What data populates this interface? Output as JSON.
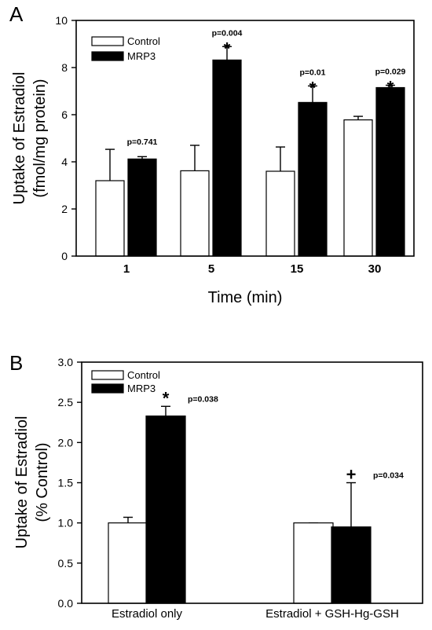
{
  "chart_data": [
    {
      "type": "bar",
      "panel_label": "A",
      "categories": [
        "1",
        "5",
        "15",
        "30"
      ],
      "xlabel": "Time (min)",
      "ylabel_line1": "Uptake of Estradiol",
      "ylabel_line2": "(fmol/mg protein)",
      "ylim": [
        0,
        10
      ],
      "yticks": [
        "0",
        "2",
        "4",
        "6",
        "8",
        "10"
      ],
      "ytick_values": [
        0,
        2,
        4,
        6,
        8,
        10
      ],
      "legend_placement": "top-left",
      "series": [
        {
          "name": "Control",
          "values": [
            3.2,
            3.62,
            3.6,
            5.78
          ],
          "errors": [
            1.33,
            1.08,
            1.03,
            0.15
          ],
          "color": "#ffffff"
        },
        {
          "name": "MRP3",
          "values": [
            4.12,
            8.32,
            6.52,
            7.15
          ],
          "errors": [
            0.1,
            0.57,
            0.7,
            0.1
          ],
          "color": "#000000"
        }
      ],
      "annotations": [
        {
          "category_index": 0,
          "pvalue": "p=0.741",
          "marker": ""
        },
        {
          "category_index": 1,
          "pvalue": "p=0.004",
          "marker": "*"
        },
        {
          "category_index": 2,
          "pvalue": "p=0.01",
          "marker": "*"
        },
        {
          "category_index": 3,
          "pvalue": "p=0.029",
          "marker": "*"
        }
      ]
    },
    {
      "type": "bar",
      "panel_label": "B",
      "categories": [
        "Estradiol only",
        "Estradiol + GSH-Hg-GSH"
      ],
      "xlabel": "",
      "ylabel_line1": "Uptake of Estradiol",
      "ylabel_line2": "(% Control)",
      "ylim": [
        0,
        3
      ],
      "yticks": [
        "0.0",
        "0.5",
        "1.0",
        "1.5",
        "2.0",
        "2.5",
        "3.0"
      ],
      "ytick_values": [
        0,
        0.5,
        1.0,
        1.5,
        2.0,
        2.5,
        3.0
      ],
      "legend_placement": "top-left",
      "series": [
        {
          "name": "Control",
          "values": [
            1.0,
            1.0
          ],
          "errors": [
            0.07,
            0.0
          ],
          "color": "#ffffff"
        },
        {
          "name": "MRP3",
          "values": [
            2.33,
            0.95
          ],
          "errors": [
            0.12,
            0.55
          ],
          "color": "#000000"
        }
      ],
      "annotations": [
        {
          "category_index": 0,
          "pvalue": "p=0.038",
          "marker": "*"
        },
        {
          "category_index": 1,
          "pvalue": "p=0.034",
          "marker": "+"
        }
      ]
    }
  ]
}
